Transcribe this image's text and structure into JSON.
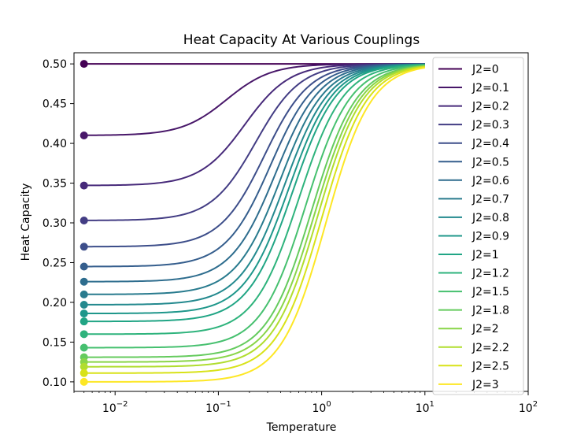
{
  "chart_data": {
    "type": "line",
    "title": "Heat Capacity At Various Couplings",
    "xlabel": "Temperature",
    "ylabel": "Heat Capacity",
    "xscale": "log",
    "xlim": [
      0.004,
      100
    ],
    "ylim": [
      0.088,
      0.514
    ],
    "x_ticks": [
      {
        "value": 0.01,
        "base": "10",
        "exp": "−2"
      },
      {
        "value": 0.1,
        "base": "10",
        "exp": "−1"
      },
      {
        "value": 1,
        "base": "10",
        "exp": "0"
      },
      {
        "value": 10,
        "base": "10",
        "exp": "1"
      },
      {
        "value": 100,
        "base": "10",
        "exp": "2"
      }
    ],
    "y_ticks": [
      "0.10",
      "0.15",
      "0.20",
      "0.25",
      "0.30",
      "0.35",
      "0.40",
      "0.45",
      "0.50"
    ],
    "marker_x": 0.005,
    "legend_position": "right",
    "series": [
      {
        "name": "J2=0",
        "start": 0.5,
        "midpoint": 0.03,
        "color": "#440154"
      },
      {
        "name": "J2=0.1",
        "start": 0.41,
        "midpoint": 0.12,
        "color": "#481769"
      },
      {
        "name": "J2=0.2",
        "start": 0.347,
        "midpoint": 0.18,
        "color": "#472a7a"
      },
      {
        "name": "J2=0.3",
        "start": 0.303,
        "midpoint": 0.23,
        "color": "#433d84"
      },
      {
        "name": "J2=0.4",
        "start": 0.27,
        "midpoint": 0.28,
        "color": "#3d4e8a"
      },
      {
        "name": "J2=0.5",
        "start": 0.245,
        "midpoint": 0.32,
        "color": "#355e8d"
      },
      {
        "name": "J2=0.6",
        "start": 0.226,
        "midpoint": 0.36,
        "color": "#2e6d8e"
      },
      {
        "name": "J2=0.7",
        "start": 0.21,
        "midpoint": 0.4,
        "color": "#297b8e"
      },
      {
        "name": "J2=0.8",
        "start": 0.197,
        "midpoint": 0.44,
        "color": "#23898e"
      },
      {
        "name": "J2=0.9",
        "start": 0.186,
        "midpoint": 0.48,
        "color": "#1f978b"
      },
      {
        "name": "J2=1",
        "start": 0.176,
        "midpoint": 0.52,
        "color": "#21a585"
      },
      {
        "name": "J2=1.2",
        "start": 0.16,
        "midpoint": 0.6,
        "color": "#2eb37c"
      },
      {
        "name": "J2=1.5",
        "start": 0.143,
        "midpoint": 0.7,
        "color": "#46c06f"
      },
      {
        "name": "J2=1.8",
        "start": 0.131,
        "midpoint": 0.8,
        "color": "#65cb5e"
      },
      {
        "name": "J2=2",
        "start": 0.125,
        "midpoint": 0.86,
        "color": "#89d548"
      },
      {
        "name": "J2=2.2",
        "start": 0.119,
        "midpoint": 0.92,
        "color": "#b0dd2f"
      },
      {
        "name": "J2=2.5",
        "start": 0.111,
        "midpoint": 1.0,
        "color": "#d8e219"
      },
      {
        "name": "J2=3",
        "start": 0.1,
        "midpoint": 1.1,
        "color": "#fde725"
      }
    ],
    "curve_model": "y = 0.5 - (0.5 - start) / (1 + (T/midpoint)^2)"
  }
}
